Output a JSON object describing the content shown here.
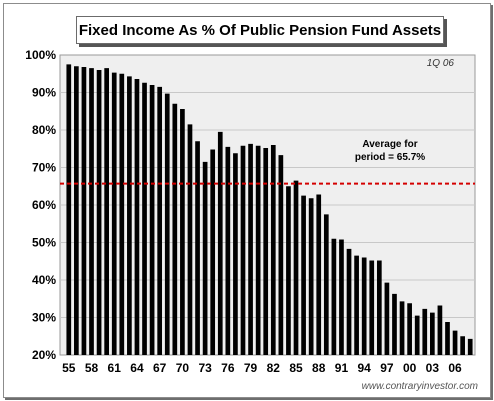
{
  "chart_data": {
    "type": "bar",
    "title": "Fixed Income As % Of Public Pension Fund Assets",
    "period_label": "1Q 06",
    "annotation_line1": "Average for",
    "annotation_line2": "period = 65.7%",
    "average": 65.7,
    "source": "www.contraryinvestor.com",
    "ylim": [
      20,
      100
    ],
    "y_ticks": [
      "20%",
      "30%",
      "40%",
      "50%",
      "60%",
      "70%",
      "80%",
      "90%",
      "100%"
    ],
    "x_tick_labels": [
      "55",
      "58",
      "61",
      "64",
      "67",
      "70",
      "73",
      "76",
      "79",
      "82",
      "85",
      "88",
      "91",
      "94",
      "97",
      "00",
      "03",
      "06"
    ],
    "grid": true,
    "colors": {
      "bar": "#000000",
      "plot_background": "#efefef",
      "average_line": "#d40000",
      "gridline": "#c8c8c8"
    },
    "values": [
      97.5,
      97,
      96.8,
      96.5,
      96,
      96.5,
      95.3,
      95,
      94.3,
      93.6,
      92.6,
      92,
      91.5,
      89.7,
      87,
      85.6,
      81.5,
      77,
      71.5,
      74.8,
      79.5,
      75.5,
      73.8,
      75.8,
      76.3,
      75.8,
      75.2,
      76,
      73.3,
      65,
      66.5,
      62.5,
      61.8,
      62.8,
      57.5,
      51,
      50.8,
      48.3,
      46.5,
      46,
      45.2,
      45.2,
      39.3,
      36.3,
      34.3,
      33.8,
      30.5,
      32.3,
      31.3,
      33.2,
      28.8,
      26.5,
      25,
      24.3
    ]
  }
}
